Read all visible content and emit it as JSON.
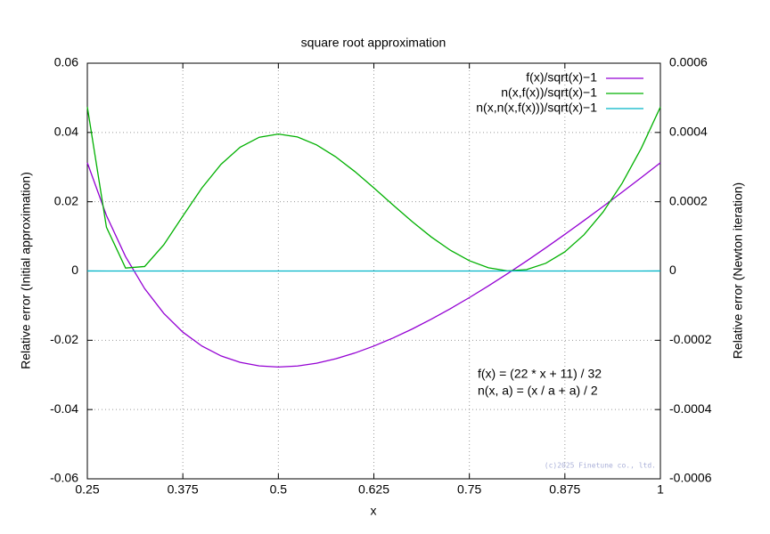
{
  "chart_data": {
    "type": "line",
    "title": "square root approximation",
    "xlabel": "x",
    "ylabel": "Relative error (Initial approximation)",
    "y2label": "Relative error (Newton iteration)",
    "x": [
      0.25,
      0.275,
      0.3,
      0.325,
      0.35,
      0.375,
      0.4,
      0.425,
      0.45,
      0.475,
      0.5,
      0.525,
      0.55,
      0.575,
      0.6,
      0.625,
      0.65,
      0.675,
      0.7,
      0.725,
      0.75,
      0.775,
      0.8,
      0.825,
      0.85,
      0.875,
      0.9,
      0.925,
      0.95,
      0.975,
      1
    ],
    "series": [
      {
        "name": "f(x)/sqrt(x)−1",
        "color": "#9400d3",
        "axis": "y",
        "values": [
          0.03125,
          0.016034,
          0.004158,
          -0.005088,
          -0.012226,
          -0.017652,
          -0.021671,
          -0.024516,
          -0.026379,
          -0.027408,
          -0.027728,
          -0.027439,
          -0.026624,
          -0.025354,
          -0.023686,
          -0.02167,
          -0.019351,
          -0.016762,
          -0.013936,
          -0.010901,
          -0.007679,
          -0.004292,
          -0.000757,
          0.002909,
          0.006693,
          0.010582,
          0.014564,
          0.01863,
          0.022772,
          0.026983,
          0.03125
        ]
      },
      {
        "name": "n(x,f(x))/sqrt(x)−1",
        "color": "#00b000",
        "axis": "y2",
        "values": [
          0.0004735,
          0.0001265,
          8.61e-06,
          1.301e-05,
          7.566e-05,
          0.0001586,
          0.00024,
          0.0003081,
          0.0003573,
          0.0003862,
          0.0003954,
          0.0003871,
          0.0003641,
          0.0003298,
          0.0002873,
          0.00024,
          0.0001909,
          0.0001429,
          9.848e-05,
          6.007e-05,
          2.971e-05,
          9.25e-06,
          2.87e-07,
          4.22e-06,
          2.225e-05,
          5.54e-05,
          0.0001045,
          0.0001704,
          0.0002535,
          0.0003545,
          0.0004735
        ]
      },
      {
        "name": "n(x,n(x,f(x)))/sqrt(x)−1",
        "color": "#00b4c8",
        "axis": "y2",
        "values": [
          1.12e-07,
          8e-09,
          3.7e-11,
          8.5e-11,
          2.9e-09,
          1.26e-08,
          2.88e-08,
          4.75e-08,
          6.38e-08,
          7.46e-08,
          7.82e-08,
          7.49e-08,
          6.63e-08,
          5.44e-08,
          4.13e-08,
          2.88e-08,
          1.82e-08,
          1.02e-08,
          4.85e-09,
          1.8e-09,
          4.4e-10,
          4.3e-11,
          0,
          8.9e-12,
          2.5e-10,
          1.53e-09,
          5.46e-09,
          1.45e-08,
          3.21e-08,
          6.28e-08,
          1.12e-07
        ]
      }
    ],
    "xlim": [
      0.25,
      1
    ],
    "ylim": [
      -0.06,
      0.06
    ],
    "y2lim": [
      -0.0006,
      0.0006
    ],
    "xticks": [
      0.25,
      0.375,
      0.5,
      0.625,
      0.75,
      0.875,
      1
    ],
    "yticks": [
      -0.06,
      -0.04,
      -0.02,
      0,
      0.02,
      0.04,
      0.06
    ],
    "y2ticks": [
      -0.0006,
      -0.0004,
      -0.0002,
      0,
      0.0002,
      0.0004,
      0.0006
    ],
    "grid": true,
    "legend": "top-right",
    "annotations": [
      "f(x) = (22 * x + 11) / 32",
      "n(x, a) = (x / a + a) / 2"
    ],
    "watermark": "(c)2025 Finetune co., ltd."
  }
}
